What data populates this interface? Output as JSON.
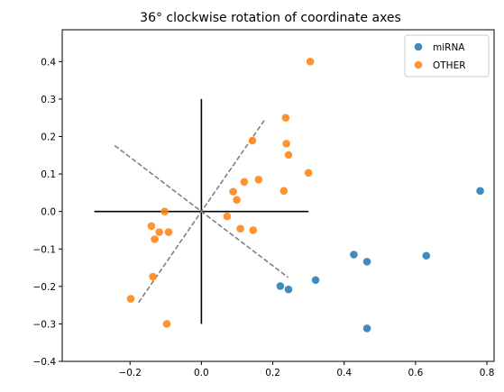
{
  "chart_data": {
    "type": "scatter",
    "title": "36° clockwise rotation of coordinate axes",
    "xlabel": "",
    "ylabel": "",
    "xlim": [
      -0.39,
      0.82
    ],
    "ylim": [
      -0.4,
      0.485
    ],
    "xticks": [
      -0.2,
      0.0,
      0.2,
      0.4,
      0.6,
      0.8
    ],
    "yticks": [
      -0.4,
      -0.3,
      -0.2,
      -0.1,
      0.0,
      0.1,
      0.2,
      0.3,
      0.4
    ],
    "xtick_labels": [
      "−0.2",
      "0.0",
      "0.2",
      "0.4",
      "0.6",
      "0.8"
    ],
    "ytick_labels": [
      "−0.4",
      "−0.3",
      "−0.2",
      "−0.1",
      "0.0",
      "0.1",
      "0.2",
      "0.3",
      "0.4"
    ],
    "grid": false,
    "legend_position": "top-right",
    "series": [
      {
        "name": "miRNA",
        "color": "#1f77b4",
        "points": [
          [
            0.781,
            0.055
          ],
          [
            0.63,
            -0.118
          ],
          [
            0.464,
            -0.134
          ],
          [
            0.427,
            -0.115
          ],
          [
            0.464,
            -0.312
          ],
          [
            0.32,
            -0.183
          ],
          [
            0.244,
            -0.208
          ],
          [
            0.221,
            -0.199
          ]
        ]
      },
      {
        "name": "OTHER",
        "color": "#ff7f0e",
        "points": [
          [
            0.305,
            0.4
          ],
          [
            0.236,
            0.25
          ],
          [
            0.238,
            0.181
          ],
          [
            0.244,
            0.151
          ],
          [
            0.143,
            0.189
          ],
          [
            0.3,
            0.103
          ],
          [
            0.16,
            0.085
          ],
          [
            0.12,
            0.079
          ],
          [
            0.089,
            0.053
          ],
          [
            0.099,
            0.031
          ],
          [
            0.231,
            0.055
          ],
          [
            0.072,
            -0.013
          ],
          [
            0.109,
            -0.046
          ],
          [
            0.145,
            -0.05
          ],
          [
            -0.103,
            0.0
          ],
          [
            -0.14,
            -0.039
          ],
          [
            -0.118,
            -0.055
          ],
          [
            -0.092,
            -0.055
          ],
          [
            -0.131,
            -0.074
          ],
          [
            -0.136,
            -0.174
          ],
          [
            -0.198,
            -0.233
          ],
          [
            -0.097,
            -0.3
          ]
        ]
      }
    ],
    "lines": [
      {
        "kind": "original-axis",
        "color": "#000000",
        "dash": false,
        "x": [
          -0.3,
          0.3
        ],
        "y": [
          0.0,
          0.0
        ]
      },
      {
        "kind": "original-axis",
        "color": "#000000",
        "dash": false,
        "x": [
          0.0,
          0.0
        ],
        "y": [
          -0.3,
          0.3
        ]
      },
      {
        "kind": "rotated-axis",
        "color": "#808080",
        "dash": true,
        "x": [
          -0.243,
          0.243
        ],
        "y": [
          0.176,
          -0.176
        ]
      },
      {
        "kind": "rotated-axis",
        "color": "#808080",
        "dash": true,
        "x": [
          -0.176,
          0.176
        ],
        "y": [
          -0.243,
          0.243
        ]
      }
    ]
  }
}
